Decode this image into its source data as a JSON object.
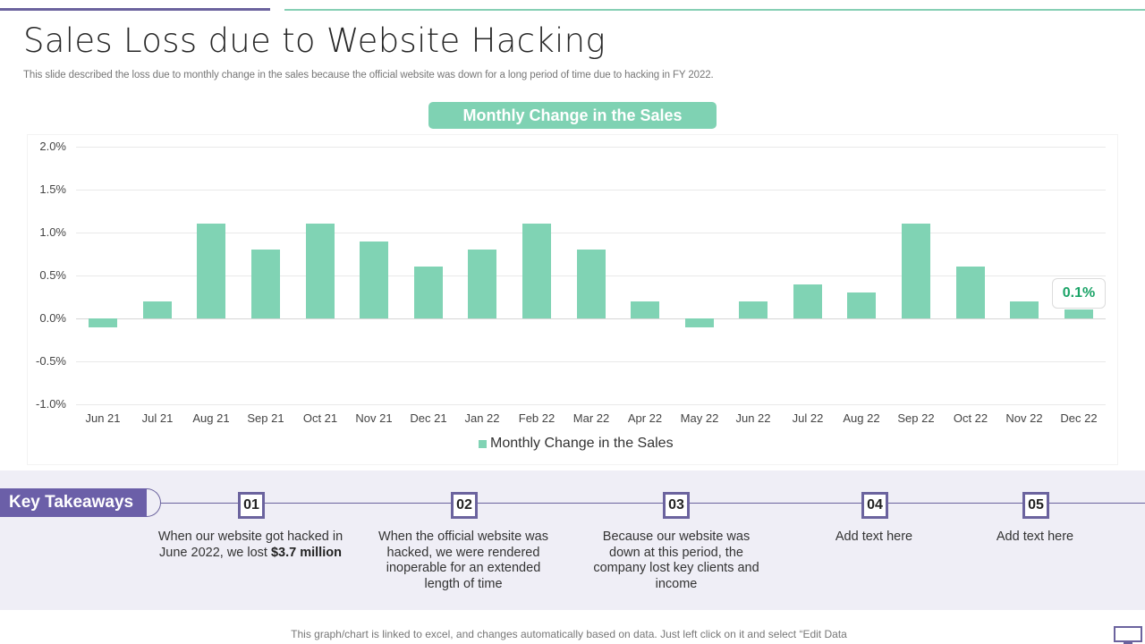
{
  "slide": {
    "title": "Sales Loss due to Website Hacking",
    "subtitle": "This slide described the loss due to monthly change in the sales because the official website was down for a long period of time due to hacking in FY 2022.",
    "chart_pill": "Monthly Change in the Sales",
    "highlight_label": "0.1%",
    "footer": "This graph/chart is linked to excel, and changes automatically based on data. Just left click on it and select “Edit Data"
  },
  "colors": {
    "accent_purple": "#6b5fa8",
    "accent_green": "#80d3b4",
    "label_green": "#1aa367",
    "band_bg": "#efeef6"
  },
  "takeaways": {
    "label": "Key Takeaways",
    "steps": [
      {
        "num": "01",
        "text_pre": "When our website got hacked in June 2022, we lost ",
        "text_bold": "$3.7 million"
      },
      {
        "num": "02",
        "text": "When the official website was hacked, we were rendered inoperable for an extended length of time"
      },
      {
        "num": "03",
        "text": "Because our website was down at this period, the company lost key clients and income"
      },
      {
        "num": "04",
        "text": "Add text here"
      },
      {
        "num": "05",
        "text": "Add text here"
      }
    ]
  },
  "icons": {
    "monitor": "monitor-icon"
  },
  "chart_data": {
    "type": "bar",
    "title": "Monthly Change in the Sales",
    "xlabel": "",
    "ylabel": "",
    "categories": [
      "Jun 21",
      "Jul 21",
      "Aug 21",
      "Sep 21",
      "Oct 21",
      "Nov 21",
      "Dec 21",
      "Jan 22",
      "Feb 22",
      "Mar 22",
      "Apr 22",
      "May 22",
      "Jun 22",
      "Jul 22",
      "Aug 22",
      "Sep 22",
      "Oct 22",
      "Nov 22",
      "Dec 22"
    ],
    "series": [
      {
        "name": "Monthly Change in the Sales",
        "values": [
          -0.1,
          0.2,
          1.1,
          0.8,
          1.1,
          0.9,
          0.6,
          0.8,
          1.1,
          0.8,
          0.2,
          -0.1,
          0.2,
          0.4,
          0.3,
          1.1,
          0.6,
          0.2,
          0.1
        ]
      }
    ],
    "unit": "%",
    "ylim": [
      -1.0,
      2.0
    ],
    "yticks": [
      "2.0%",
      "1.5%",
      "1.0%",
      "0.5%",
      "0.0%",
      "-0.5%",
      "-1.0%"
    ],
    "grid": true,
    "legend_position": "bottom",
    "annotations": [
      {
        "category": "Dec 22",
        "label": "0.1%"
      }
    ]
  }
}
